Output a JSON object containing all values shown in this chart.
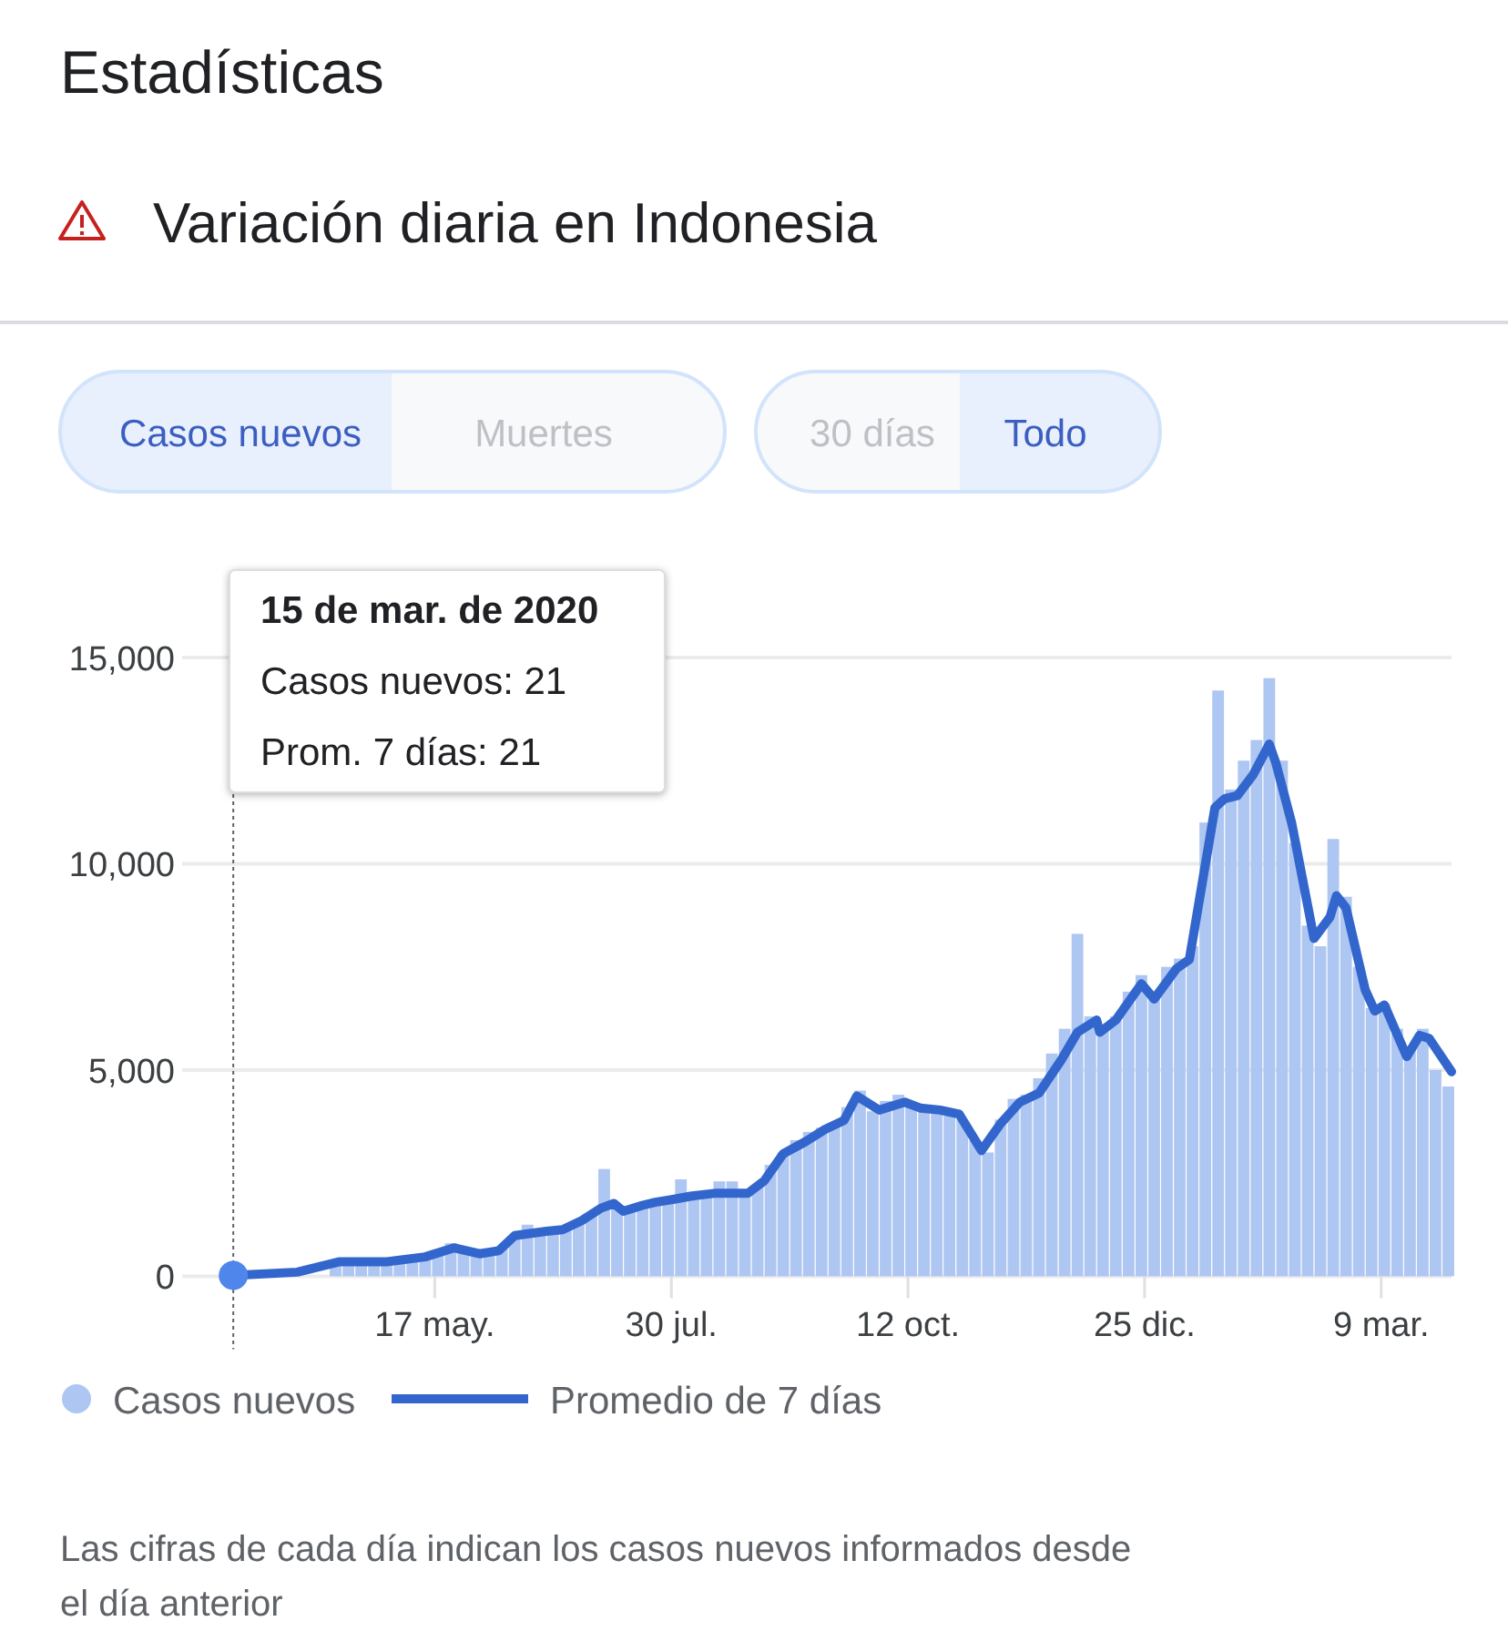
{
  "chart_data": {
    "type": "bar",
    "title": "Estadísticas",
    "subtitle": "Variación diaria en Indonesia",
    "xlim": [
      "2020-02-28",
      "2021-03-31"
    ],
    "xticks": [
      {
        "value": "2020-05-17",
        "label": "17 may."
      },
      {
        "value": "2020-07-30",
        "label": "30 jul."
      },
      {
        "value": "2020-10-12",
        "label": "12 oct."
      },
      {
        "value": "2020-12-25",
        "label": "25 dic."
      },
      {
        "value": "2021-03-09",
        "label": "9 mar."
      }
    ],
    "ylim": [
      0,
      15000
    ],
    "yticks": [
      0,
      {
        "value": 5000,
        "label": "5,000"
      },
      {
        "value": 10000,
        "label": "10,000"
      },
      {
        "value": 15000,
        "label": "15,000"
      }
    ],
    "grid": "y",
    "legend": "bottom",
    "ref_lines": [
      {
        "axis": "x",
        "value": "2020-03-15",
        "color": "#5f6368",
        "line_style": "dotted"
      }
    ],
    "annotations": [
      "Casos nuevos",
      "Muertes",
      "30 días",
      "Todo",
      "15 de mar. de 2020\nCasos nuevos: 21\nProm. 7 días: 21",
      "Las cifras de cada día indican los casos nuevos informados desde el día anterior"
    ],
    "series": [
      {
        "name": "Casos nuevos",
        "color": "#aec6f2",
        "x": [
          "2020-03-19",
          "2020-03-23",
          "2020-03-27",
          "2020-03-31",
          "2020-04-04",
          "2020-04-08",
          "2020-04-12",
          "2020-04-16",
          "2020-04-20",
          "2020-04-24",
          "2020-04-28",
          "2020-05-02",
          "2020-05-06",
          "2020-05-10",
          "2020-05-14",
          "2020-05-18",
          "2020-05-22",
          "2020-05-26",
          "2020-05-30",
          "2020-06-03",
          "2020-06-07",
          "2020-06-11",
          "2020-06-15",
          "2020-06-19",
          "2020-06-23",
          "2020-06-27",
          "2020-07-01",
          "2020-07-05",
          "2020-07-09",
          "2020-07-13",
          "2020-07-17",
          "2020-07-21",
          "2020-07-25",
          "2020-07-29",
          "2020-08-02",
          "2020-08-06",
          "2020-08-10",
          "2020-08-14",
          "2020-08-18",
          "2020-08-22",
          "2020-08-26",
          "2020-08-30",
          "2020-09-03",
          "2020-09-07",
          "2020-09-11",
          "2020-09-15",
          "2020-09-19",
          "2020-09-23",
          "2020-09-27",
          "2020-10-01",
          "2020-10-05",
          "2020-10-09",
          "2020-10-13",
          "2020-10-17",
          "2020-10-21",
          "2020-10-25",
          "2020-10-29",
          "2020-11-02",
          "2020-11-06",
          "2020-11-10",
          "2020-11-14",
          "2020-11-18",
          "2020-11-22",
          "2020-11-26",
          "2020-11-30",
          "2020-12-04",
          "2020-12-08",
          "2020-12-12",
          "2020-12-16",
          "2020-12-20",
          "2020-12-24",
          "2020-12-28",
          "2021-01-01",
          "2021-01-05",
          "2021-01-09",
          "2021-01-13",
          "2021-01-17",
          "2021-01-21",
          "2021-01-25",
          "2021-01-29",
          "2021-02-02",
          "2021-02-06",
          "2021-02-10",
          "2021-02-14",
          "2021-02-18",
          "2021-02-22",
          "2021-02-26",
          "2021-03-02",
          "2021-03-06",
          "2021-03-10",
          "2021-03-14",
          "2021-03-18",
          "2021-03-22",
          "2021-03-26",
          "2021-03-30"
        ],
        "values": [
          40,
          60,
          null,
          null,
          null,
          null,
          null,
          330,
          350,
          340,
          370,
          360,
          400,
          450,
          500,
          550,
          800,
          650,
          550,
          600,
          700,
          1000,
          1250,
          1050,
          1150,
          1200,
          1300,
          1500,
          2600,
          1650,
          1600,
          1750,
          1800,
          1900,
          2350,
          1950,
          2050,
          2300,
          2300,
          2000,
          2200,
          2700,
          3000,
          3300,
          3500,
          3600,
          3700,
          4100,
          4500,
          4000,
          4250,
          4400,
          4100,
          4000,
          4100,
          3900,
          3800,
          3300,
          3000,
          3800,
          4300,
          4400,
          4800,
          5400,
          6000,
          8300,
          6300,
          6000,
          6300,
          6900,
          7300,
          6800,
          7500,
          7700,
          8000,
          11000,
          14200,
          11800,
          12500,
          13000,
          14500,
          12500,
          10500,
          8500,
          8000,
          10600,
          9200,
          7500,
          6500,
          6600,
          6000,
          5500,
          6000,
          5000,
          4600
        ]
      },
      {
        "name": "Promedio de 7 días",
        "type": "line",
        "color": "#3366cc",
        "x": [
          "2020-03-15",
          "2020-04-04",
          "2020-04-17",
          "2020-05-02",
          "2020-05-14",
          "2020-05-23",
          "2020-05-31",
          "2020-06-06",
          "2020-06-11",
          "2020-06-21",
          "2020-06-26",
          "2020-07-02",
          "2020-07-08",
          "2020-07-12",
          "2020-07-15",
          "2020-07-21",
          "2020-07-25",
          "2020-07-31",
          "2020-08-05",
          "2020-08-13",
          "2020-08-20",
          "2020-08-23",
          "2020-08-28",
          "2020-09-03",
          "2020-09-10",
          "2020-09-16",
          "2020-09-22",
          "2020-09-26",
          "2020-10-03",
          "2020-10-11",
          "2020-10-16",
          "2020-10-22",
          "2020-10-28",
          "2020-11-04",
          "2020-11-10",
          "2020-11-16",
          "2020-11-22",
          "2020-11-29",
          "2020-12-04",
          "2020-12-10",
          "2020-12-11",
          "2020-12-16",
          "2020-12-24",
          "2020-12-28",
          "2021-01-04",
          "2021-01-08",
          "2021-01-16",
          "2021-01-19",
          "2021-01-23",
          "2021-01-28",
          "2021-02-02",
          "2021-02-04",
          "2021-02-09",
          "2021-02-16",
          "2021-02-21",
          "2021-02-23",
          "2021-02-26",
          "2021-03-04",
          "2021-03-07",
          "2021-03-10",
          "2021-03-17",
          "2021-03-21",
          "2021-03-24",
          "2021-03-31"
        ],
        "values": [
          21,
          100,
          350,
          350,
          470,
          690,
          545,
          620,
          985,
          1090,
          1130,
          1350,
          1650,
          1765,
          1575,
          1720,
          1795,
          1870,
          1940,
          2015,
          2015,
          2015,
          2310,
          2970,
          3265,
          3560,
          3780,
          4370,
          4030,
          4220,
          4075,
          4030,
          3930,
          3045,
          3705,
          4220,
          4440,
          5250,
          5915,
          6210,
          5915,
          6210,
          7090,
          6720,
          7460,
          7680,
          11360,
          11575,
          11650,
          12165,
          12900,
          12460,
          10990,
          8190,
          8710,
          9225,
          8930,
          6945,
          6430,
          6575,
          5325,
          5840,
          5765,
          4960
        ]
      }
    ]
  }
}
